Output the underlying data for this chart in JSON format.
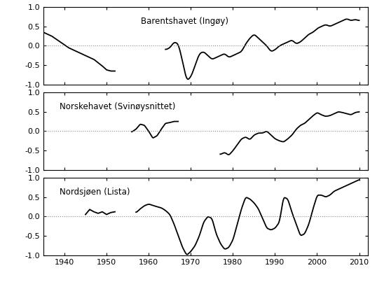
{
  "title": "",
  "xlim": [
    1935,
    2012
  ],
  "ylim": [
    -1.0,
    1.0
  ],
  "yticks": [
    -1.0,
    -0.5,
    0.0,
    0.5,
    1.0
  ],
  "xticks": [
    1940,
    1950,
    1960,
    1970,
    1980,
    1990,
    2000,
    2010
  ],
  "label_barents": "Barentshavet (Ingøy)",
  "label_norske": "Norskehavet (Svinøysnittet)",
  "label_nordsjoen": "Nordsjøen (Lista)",
  "line_color": "#000000",
  "line_width": 1.3,
  "dotted_color": "#888888",
  "background": "#ffffff"
}
